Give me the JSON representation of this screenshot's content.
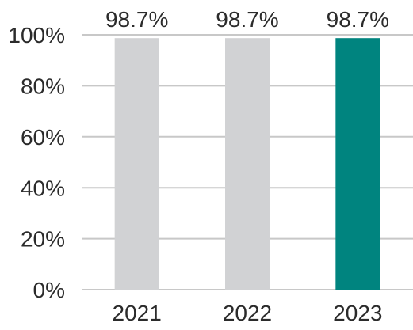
{
  "chart_data": {
    "type": "bar",
    "categories": [
      "2021",
      "2022",
      "2023"
    ],
    "values": [
      98.7,
      98.7,
      98.7
    ],
    "data_labels": [
      "98.7%",
      "98.7%",
      "98.7%"
    ],
    "ylim": [
      0,
      100
    ],
    "y_ticks": [
      0,
      20,
      40,
      60,
      80,
      100
    ],
    "y_tick_labels": [
      "0%",
      "20%",
      "40%",
      "60%",
      "80%",
      "100%"
    ],
    "grid": true,
    "legend": false,
    "colors": {
      "default_bar": "#d1d2d4",
      "highlight_bar": "#00847f",
      "grid": "#c8c8c8",
      "text": "#2b2b2b"
    },
    "highlight_index": 2
  }
}
